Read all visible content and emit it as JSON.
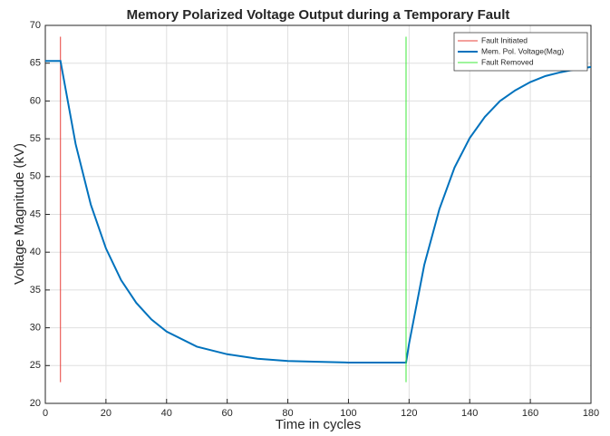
{
  "chart_data": {
    "type": "line",
    "title": "Memory Polarized Voltage Output during a Temporary Fault",
    "x_label": "Time in cycles",
    "y_label": "Voltage Magnitude (kV)",
    "xlim": [
      0,
      180
    ],
    "ylim": [
      20,
      70
    ],
    "xticks": [
      0,
      20,
      40,
      60,
      80,
      100,
      120,
      140,
      160,
      180
    ],
    "yticks": [
      20,
      25,
      30,
      35,
      40,
      45,
      50,
      55,
      60,
      65,
      70
    ],
    "grid": true,
    "legend": "top-right",
    "series": [
      {
        "name": "Fault Initiated",
        "color": "#e8403a",
        "x": [
          5,
          5
        ],
        "values": [
          22.8,
          68.5
        ]
      },
      {
        "name": "Mem. Pol. Voltage(Mag)",
        "color": "#0072bd",
        "x": [
          0,
          5,
          10,
          15,
          20,
          25,
          30,
          35,
          40,
          50,
          60,
          70,
          80,
          90,
          100,
          110,
          119,
          120,
          125,
          130,
          135,
          140,
          145,
          150,
          155,
          160,
          165,
          170,
          175,
          180
        ],
        "values": [
          65.3,
          65.3,
          54.3,
          46.3,
          40.5,
          36.3,
          33.3,
          31.1,
          29.5,
          27.5,
          26.5,
          25.9,
          25.6,
          25.5,
          25.4,
          25.4,
          25.4,
          27.9,
          38.3,
          45.7,
          51.2,
          55.1,
          57.9,
          60.0,
          61.4,
          62.5,
          63.3,
          63.8,
          64.2,
          64.5
        ]
      },
      {
        "name": "Fault Removed",
        "color": "#3ee83a",
        "x": [
          119,
          119
        ],
        "values": [
          22.8,
          68.5
        ]
      }
    ]
  }
}
